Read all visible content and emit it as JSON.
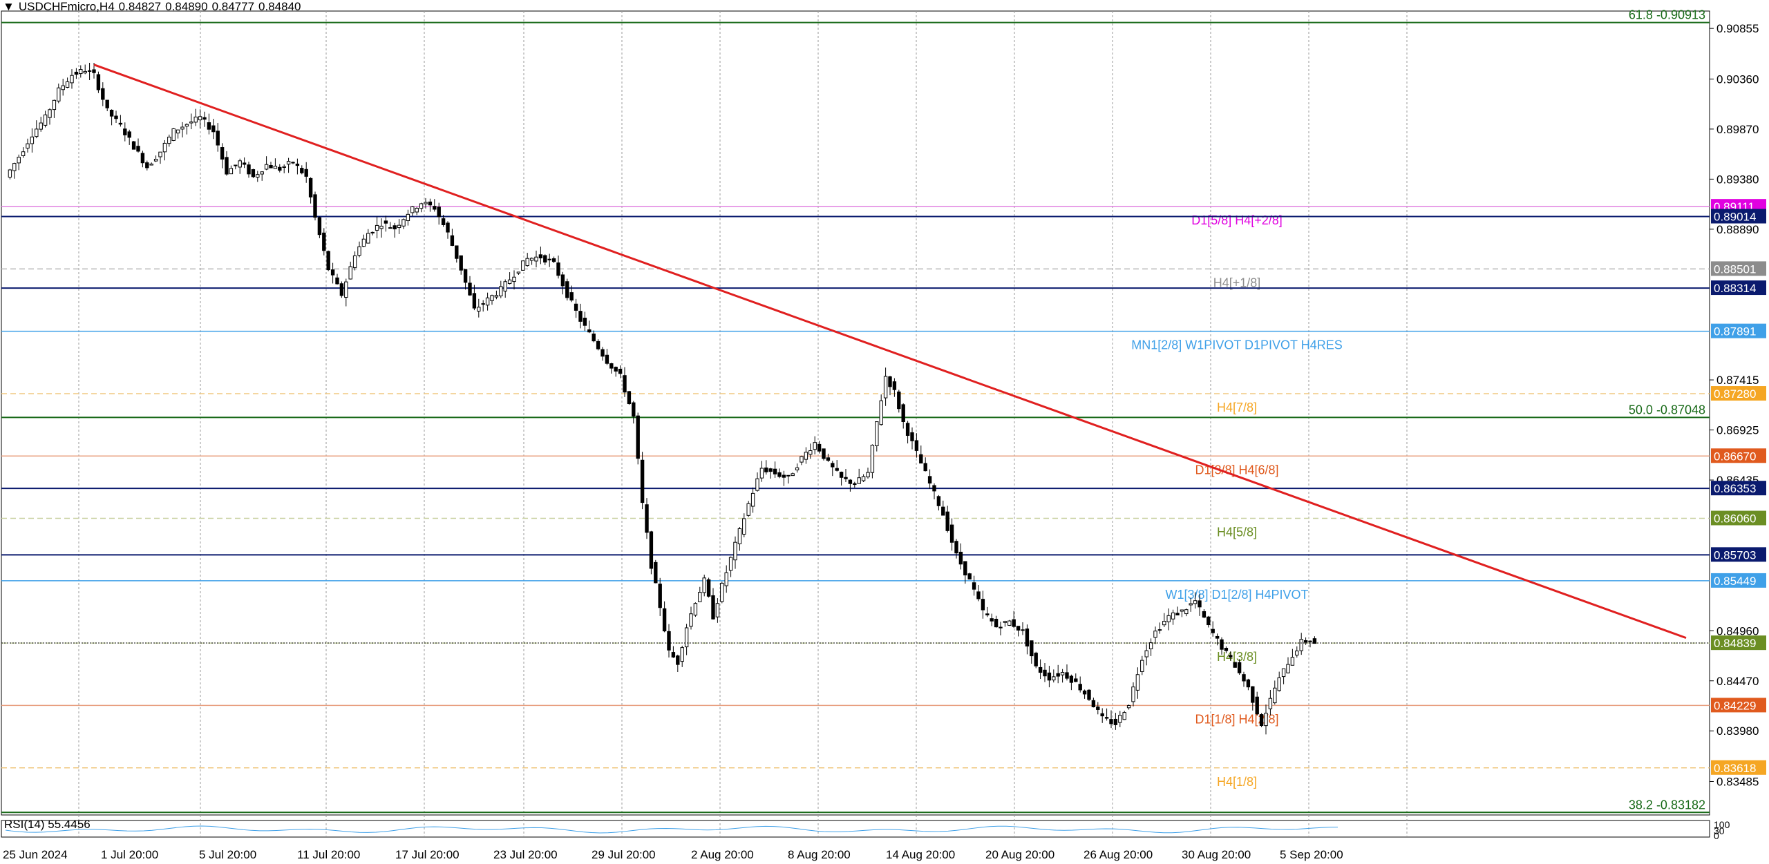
{
  "header": {
    "symbol": "USDCHFmicro,H4",
    "open": "0.84827",
    "high": "0.84890",
    "low": "0.84777",
    "close": "0.84840"
  },
  "rsi": {
    "label": "RSI(14) 55.4456",
    "ticks": [
      "100",
      "30",
      "0"
    ]
  },
  "chart_data": {
    "type": "candlestick",
    "symbol": "USDCHFmicro",
    "timeframe": "H4",
    "ylim": [
      0.8316,
      0.9102
    ],
    "x_dates": [
      "25 Jun 2024",
      "1 Jul 20:00",
      "5 Jul 20:00",
      "11 Jul 20:00",
      "17 Jul 20:00",
      "23 Jul 20:00",
      "29 Jul 20:00",
      "2 Aug 20:00",
      "8 Aug 20:00",
      "14 Aug 20:00",
      "20 Aug 20:00",
      "26 Aug 20:00",
      "30 Aug 20:00",
      "5 Sep 20:00"
    ],
    "y_ticks": [
      "0.90855",
      "0.90360",
      "0.89870",
      "0.89380",
      "0.88890",
      "0.87415",
      "0.86925",
      "0.86435",
      "0.84960",
      "0.84470",
      "0.83980",
      "0.83485"
    ],
    "close_path": [
      [
        0,
        0.894
      ],
      [
        3,
        0.896
      ],
      [
        6,
        0.8982
      ],
      [
        9,
        0.8998
      ],
      [
        12,
        0.9025
      ],
      [
        15,
        0.904
      ],
      [
        18,
        0.9045
      ],
      [
        20,
        0.904
      ],
      [
        23,
        0.9005
      ],
      [
        26,
        0.899
      ],
      [
        29,
        0.897
      ],
      [
        32,
        0.895
      ],
      [
        35,
        0.8965
      ],
      [
        38,
        0.8985
      ],
      [
        41,
        0.8992
      ],
      [
        44,
        0.8998
      ],
      [
        47,
        0.8985
      ],
      [
        50,
        0.8945
      ],
      [
        53,
        0.8955
      ],
      [
        56,
        0.894
      ],
      [
        59,
        0.8952
      ],
      [
        62,
        0.8948
      ],
      [
        65,
        0.8955
      ],
      [
        68,
        0.894
      ],
      [
        70,
        0.89
      ],
      [
        73,
        0.885
      ],
      [
        76,
        0.8825
      ],
      [
        79,
        0.8865
      ],
      [
        82,
        0.8885
      ],
      [
        85,
        0.8895
      ],
      [
        88,
        0.889
      ],
      [
        91,
        0.8905
      ],
      [
        94,
        0.8915
      ],
      [
        97,
        0.891
      ],
      [
        100,
        0.8885
      ],
      [
        103,
        0.885
      ],
      [
        106,
        0.881
      ],
      [
        109,
        0.882
      ],
      [
        112,
        0.883
      ],
      [
        115,
        0.8845
      ],
      [
        118,
        0.886
      ],
      [
        121,
        0.8862
      ],
      [
        124,
        0.8855
      ],
      [
        127,
        0.8825
      ],
      [
        130,
        0.88
      ],
      [
        133,
        0.878
      ],
      [
        136,
        0.876
      ],
      [
        139,
        0.8745
      ],
      [
        142,
        0.8705
      ],
      [
        144,
        0.862
      ],
      [
        146,
        0.856
      ],
      [
        148,
        0.852
      ],
      [
        150,
        0.8475
      ],
      [
        152,
        0.8465
      ],
      [
        154,
        0.85
      ],
      [
        156,
        0.8525
      ],
      [
        158,
        0.8545
      ],
      [
        160,
        0.851
      ],
      [
        162,
        0.854
      ],
      [
        165,
        0.858
      ],
      [
        168,
        0.862
      ],
      [
        171,
        0.8655
      ],
      [
        174,
        0.865
      ],
      [
        177,
        0.8645
      ],
      [
        180,
        0.8665
      ],
      [
        183,
        0.868
      ],
      [
        186,
        0.866
      ],
      [
        189,
        0.8645
      ],
      [
        192,
        0.864
      ],
      [
        195,
        0.865
      ],
      [
        197,
        0.87
      ],
      [
        199,
        0.8745
      ],
      [
        201,
        0.873
      ],
      [
        203,
        0.87
      ],
      [
        206,
        0.867
      ],
      [
        209,
        0.864
      ],
      [
        212,
        0.861
      ],
      [
        215,
        0.857
      ],
      [
        218,
        0.8545
      ],
      [
        221,
        0.8515
      ],
      [
        224,
        0.85
      ],
      [
        227,
        0.8505
      ],
      [
        230,
        0.8495
      ],
      [
        233,
        0.846
      ],
      [
        236,
        0.845
      ],
      [
        239,
        0.8455
      ],
      [
        242,
        0.8445
      ],
      [
        245,
        0.843
      ],
      [
        248,
        0.841
      ],
      [
        251,
        0.8405
      ],
      [
        254,
        0.8425
      ],
      [
        257,
        0.847
      ],
      [
        260,
        0.8495
      ],
      [
        263,
        0.851
      ],
      [
        266,
        0.8515
      ],
      [
        269,
        0.8525
      ],
      [
        272,
        0.85
      ],
      [
        275,
        0.848
      ],
      [
        278,
        0.8462
      ],
      [
        281,
        0.844
      ],
      [
        284,
        0.8405
      ],
      [
        287,
        0.844
      ],
      [
        290,
        0.8465
      ],
      [
        293,
        0.8485
      ],
      [
        295,
        0.8487
      ],
      [
        296,
        0.8484
      ]
    ],
    "trendline": {
      "from": [
        20,
        0.905
      ],
      "to": [
        380,
        0.8489
      ],
      "color": "#e02020"
    },
    "levels": [
      {
        "price": 0.90913,
        "color": "#1a6b1a",
        "label": "61.8 -0.90913",
        "tag": "",
        "tag_bg": ""
      },
      {
        "price": 0.89111,
        "color": "#e080e0",
        "label": "D1[5/8] H4[+2/8]",
        "tag": "0.89111",
        "tag_bg": "#e000e0"
      },
      {
        "price": 0.89014,
        "color": "#0a1a6e",
        "label": "",
        "tag": "0.89014",
        "tag_bg": "#0a1a6e"
      },
      {
        "price": 0.88501,
        "color": "#b8b8b8",
        "label": "H4[+1/8]",
        "tag": "0.88501",
        "tag_bg": "#8c8c8c"
      },
      {
        "price": 0.88314,
        "color": "#0a1a6e",
        "label": "",
        "tag": "0.88314",
        "tag_bg": "#0a1a6e"
      },
      {
        "price": 0.87891,
        "color": "#3fa0e8",
        "label": "MN1[2/8] W1PIVOT D1PIVOT H4RES",
        "tag": "0.87891",
        "tag_bg": "#3fa0e8"
      },
      {
        "price": 0.8728,
        "color": "#f0c880",
        "label": "H4[7/8]",
        "tag": "0.87280",
        "tag_bg": "#f5a623"
      },
      {
        "price": 0.87048,
        "color": "#1a6b1a",
        "label": "50.0 -0.87048",
        "tag": "",
        "tag_bg": ""
      },
      {
        "price": 0.8667,
        "color": "#e8a080",
        "label": "D1[3/8] H4[6/8]",
        "tag": "0.86670",
        "tag_bg": "#e05a1e"
      },
      {
        "price": 0.86353,
        "color": "#0a1a6e",
        "label": "",
        "tag": "0.86353",
        "tag_bg": "#0a1a6e"
      },
      {
        "price": 0.8606,
        "color": "#c8d0a0",
        "label": "H4[5/8]",
        "tag": "0.86060",
        "tag_bg": "#6b8e23"
      },
      {
        "price": 0.85703,
        "color": "#0a1a6e",
        "label": "",
        "tag": "0.85703",
        "tag_bg": "#0a1a6e"
      },
      {
        "price": 0.85449,
        "color": "#3fa0e8",
        "label": "W1[3/8] D1[2/8] H4PIVOT",
        "tag": "0.85449",
        "tag_bg": "#3fa0e8"
      },
      {
        "price": 0.84839,
        "color": "#c8d0a0",
        "label": "H4[3/8]",
        "tag": "0.84839",
        "tag_bg": "#6b8e23"
      },
      {
        "price": 0.84229,
        "color": "#e8a080",
        "label": "D1[1/8] H4[2/8]",
        "tag": "0.84229",
        "tag_bg": "#e05a1e"
      },
      {
        "price": 0.83618,
        "color": "#f0c880",
        "label": "H4[1/8]",
        "tag": "0.83618",
        "tag_bg": "#f5a623"
      },
      {
        "price": 0.83182,
        "color": "#1a6b1a",
        "label": "38.2 -0.83182",
        "tag": "",
        "tag_bg": ""
      }
    ]
  }
}
